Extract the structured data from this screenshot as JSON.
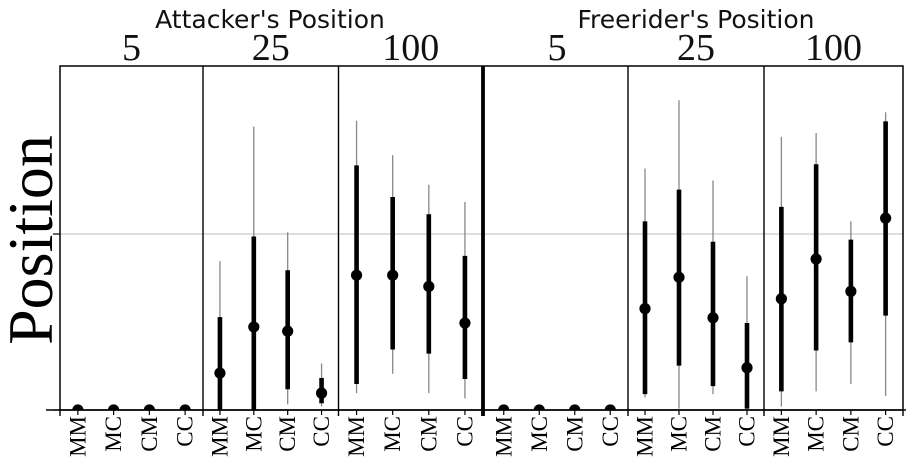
{
  "chart_data": {
    "type": "pointrange",
    "ylabel": "Position",
    "categories": [
      "MM",
      "MC",
      "CM",
      "CC"
    ],
    "ylim": [
      0,
      1
    ],
    "gridline_y": 0.5,
    "grid": "single horizontal reference line",
    "legend": "none",
    "colors": {
      "bar": "#000000",
      "point": "#000000",
      "whisker": "#888888",
      "gridline": "#c9c9c9",
      "frame": "#000000",
      "background": "#ffffff"
    },
    "facets": [
      {
        "title": "Attacker's Position",
        "panels": [
          {
            "label": "5",
            "series": [
              {
                "category": "MM",
                "point": 0,
                "thick": [
                  0,
                  0
                ],
                "thin": [
                  0,
                  0
                ]
              },
              {
                "category": "MC",
                "point": 0,
                "thick": [
                  0,
                  0
                ],
                "thin": [
                  0,
                  0
                ]
              },
              {
                "category": "CM",
                "point": 0,
                "thick": [
                  0,
                  0
                ],
                "thin": [
                  0,
                  0
                ]
              },
              {
                "category": "CC",
                "point": 0,
                "thick": [
                  0,
                  0
                ],
                "thin": [
                  0,
                  0
                ]
              }
            ]
          },
          {
            "label": "25",
            "series": [
              {
                "category": "MM",
                "point": 0.105,
                "thick": [
                  0.001,
                  0.264
                ],
                "thin": [
                  0,
                  0.423
                ]
              },
              {
                "category": "MC",
                "point": 0.236,
                "thick": [
                  0,
                  0.493
                ],
                "thin": [
                  0,
                  0.805
                ]
              },
              {
                "category": "CM",
                "point": 0.224,
                "thick": [
                  0.059,
                  0.397
                ],
                "thin": [
                  0.016,
                  0.505
                ]
              },
              {
                "category": "CC",
                "point": 0.048,
                "thick": [
                  0.019,
                  0.091
                ],
                "thin": [
                  0.01,
                  0.132
                ]
              }
            ]
          },
          {
            "label": "100",
            "series": [
              {
                "category": "MM",
                "point": 0.383,
                "thick": [
                  0.074,
                  0.695
                ],
                "thin": [
                  0.048,
                  0.822
                ]
              },
              {
                "category": "MC",
                "point": 0.383,
                "thick": [
                  0.172,
                  0.605
                ],
                "thin": [
                  0.103,
                  0.724
                ]
              },
              {
                "category": "CM",
                "point": 0.351,
                "thick": [
                  0.16,
                  0.556
                ],
                "thin": [
                  0.048,
                  0.64
                ]
              },
              {
                "category": "CC",
                "point": 0.247,
                "thick": [
                  0.088,
                  0.438
                ],
                "thin": [
                  0.033,
                  0.591
                ]
              }
            ]
          }
        ]
      },
      {
        "title": "Freerider's Position",
        "panels": [
          {
            "label": "5",
            "series": [
              {
                "category": "MM",
                "point": 0,
                "thick": [
                  0,
                  0
                ],
                "thin": [
                  0,
                  0
                ]
              },
              {
                "category": "MC",
                "point": 0,
                "thick": [
                  0,
                  0
                ],
                "thin": [
                  0,
                  0
                ]
              },
              {
                "category": "CM",
                "point": 0,
                "thick": [
                  0,
                  0
                ],
                "thin": [
                  0,
                  0
                ]
              },
              {
                "category": "CC",
                "point": 0,
                "thick": [
                  0,
                  0
                ],
                "thin": [
                  0,
                  0
                ]
              }
            ]
          },
          {
            "label": "25",
            "series": [
              {
                "category": "MM",
                "point": 0.288,
                "thick": [
                  0.045,
                  0.536
                ],
                "thin": [
                  0.036,
                  0.686
                ]
              },
              {
                "category": "MC",
                "point": 0.377,
                "thick": [
                  0.126,
                  0.626
                ],
                "thin": [
                  0.004,
                  0.88
                ]
              },
              {
                "category": "CM",
                "point": 0.262,
                "thick": [
                  0.068,
                  0.478
                ],
                "thin": [
                  0.045,
                  0.652
                ]
              },
              {
                "category": "CC",
                "point": 0.12,
                "thick": [
                  0.004,
                  0.247
                ],
                "thin": [
                  0.001,
                  0.38
                ]
              }
            ]
          },
          {
            "label": "100",
            "series": [
              {
                "category": "MM",
                "point": 0.316,
                "thick": [
                  0.053,
                  0.577
                ],
                "thin": [
                  0.01,
                  0.776
                ]
              },
              {
                "category": "MC",
                "point": 0.429,
                "thick": [
                  0.169,
                  0.698
                ],
                "thin": [
                  0.053,
                  0.787
                ]
              },
              {
                "category": "CM",
                "point": 0.337,
                "thick": [
                  0.192,
                  0.484
                ],
                "thin": [
                  0.074,
                  0.536
                ]
              },
              {
                "category": "CC",
                "point": 0.545,
                "thick": [
                  0.268,
                  0.82
                ],
                "thin": [
                  0.04,
                  0.846
                ]
              }
            ]
          }
        ]
      }
    ]
  }
}
